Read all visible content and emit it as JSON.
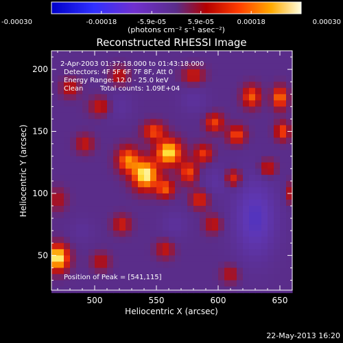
{
  "chart_data": {
    "type": "heatmap",
    "title": "Reconstructed RHESSI Image",
    "xlabel": "Heliocentric X (arcsec)",
    "ylabel": "Heliocentric Y (arcsec)",
    "xlim": [
      465,
      660
    ],
    "ylim": [
      22,
      215
    ],
    "x_ticks": [
      500,
      550,
      600,
      650
    ],
    "y_ticks": [
      50,
      100,
      150,
      200
    ],
    "colorbar": {
      "unit_label": "(photons cm⁻² s⁻¹ asec⁻²)",
      "range": [
        -0.0003,
        0.0003
      ],
      "tick_values": [
        -0.0003,
        -0.00018,
        -5.9e-05,
        5.9e-05,
        0.00018,
        0.0003
      ],
      "tick_labels": [
        "-0.00030",
        "-0.00018",
        "-5.9e-05",
        "5.9e-05",
        "0.00018",
        "0.00030"
      ]
    },
    "annotations": {
      "time_range": "2-Apr-2003 01:37:18.000 to 01:43:18.000",
      "detectors": "Detectors: 4F 5F 6F 7F 8F, Att 0",
      "energy_range": "Energy Range: 12.0 - 25.0 keV",
      "clean": "Clean",
      "total_counts": "Total counts: 1.09E+04",
      "peak": "Position of Peak = [541,115]"
    },
    "footer_date": "22-May-2013 16:20",
    "sources": [
      {
        "x": 541,
        "y": 115,
        "amp": 0.0003,
        "sx": 7,
        "sy": 8
      },
      {
        "x": 560,
        "y": 133,
        "amp": 0.00028,
        "sx": 7,
        "sy": 7
      },
      {
        "x": 527,
        "y": 127,
        "amp": 0.0002,
        "sx": 6,
        "sy": 7
      },
      {
        "x": 548,
        "y": 150,
        "amp": 0.00016,
        "sx": 6,
        "sy": 5
      },
      {
        "x": 557,
        "y": 104,
        "amp": 0.00017,
        "sx": 5,
        "sy": 5
      },
      {
        "x": 576,
        "y": 117,
        "amp": 0.00016,
        "sx": 5,
        "sy": 6
      },
      {
        "x": 588,
        "y": 132,
        "amp": 0.00014,
        "sx": 5,
        "sy": 5
      },
      {
        "x": 597,
        "y": 157,
        "amp": 0.00015,
        "sx": 5,
        "sy": 5
      },
      {
        "x": 615,
        "y": 147,
        "amp": 0.00016,
        "sx": 5,
        "sy": 5
      },
      {
        "x": 627,
        "y": 178,
        "amp": 0.00017,
        "sx": 5,
        "sy": 6
      },
      {
        "x": 650,
        "y": 177,
        "amp": 0.0002,
        "sx": 4,
        "sy": 6
      },
      {
        "x": 652,
        "y": 150,
        "amp": 0.00016,
        "sx": 4,
        "sy": 5
      },
      {
        "x": 612,
        "y": 112,
        "amp": 0.00015,
        "sx": 5,
        "sy": 5
      },
      {
        "x": 585,
        "y": 95,
        "amp": 0.00013,
        "sx": 5,
        "sy": 5
      },
      {
        "x": 470,
        "y": 48,
        "amp": 0.0003,
        "sx": 6,
        "sy": 7
      },
      {
        "x": 505,
        "y": 170,
        "amp": 0.00011,
        "sx": 6,
        "sy": 5
      },
      {
        "x": 492,
        "y": 140,
        "amp": 0.0001,
        "sx": 5,
        "sy": 5
      },
      {
        "x": 480,
        "y": 185,
        "amp": 0.0001,
        "sx": 5,
        "sy": 5
      },
      {
        "x": 520,
        "y": 195,
        "amp": 0.0001,
        "sx": 5,
        "sy": 5
      },
      {
        "x": 580,
        "y": 195,
        "amp": 0.00011,
        "sx": 6,
        "sy": 5
      },
      {
        "x": 522,
        "y": 75,
        "amp": 0.00011,
        "sx": 5,
        "sy": 5
      },
      {
        "x": 505,
        "y": 45,
        "amp": 9e-05,
        "sx": 5,
        "sy": 5
      },
      {
        "x": 557,
        "y": 55,
        "amp": 0.0001,
        "sx": 5,
        "sy": 5
      },
      {
        "x": 596,
        "y": 75,
        "amp": 0.0001,
        "sx": 5,
        "sy": 5
      },
      {
        "x": 640,
        "y": 120,
        "amp": 0.00012,
        "sx": 5,
        "sy": 5
      },
      {
        "x": 660,
        "y": 100,
        "amp": 0.0001,
        "sx": 4,
        "sy": 6
      },
      {
        "x": 610,
        "y": 35,
        "amp": 9e-05,
        "sx": 5,
        "sy": 5
      },
      {
        "x": 470,
        "y": 95,
        "amp": 8e-05,
        "sx": 5,
        "sy": 6
      },
      {
        "x": 630,
        "y": 80,
        "amp": -0.00015,
        "sx": 12,
        "sy": 22
      },
      {
        "x": 600,
        "y": 110,
        "amp": -6e-05,
        "sx": 8,
        "sy": 8
      },
      {
        "x": 565,
        "y": 75,
        "amp": -5e-05,
        "sx": 8,
        "sy": 8
      },
      {
        "x": 520,
        "y": 170,
        "amp": -5e-05,
        "sx": 8,
        "sy": 8
      },
      {
        "x": 580,
        "y": 175,
        "amp": -5e-05,
        "sx": 8,
        "sy": 8
      },
      {
        "x": 490,
        "y": 70,
        "amp": -4e-05,
        "sx": 7,
        "sy": 7
      }
    ]
  }
}
